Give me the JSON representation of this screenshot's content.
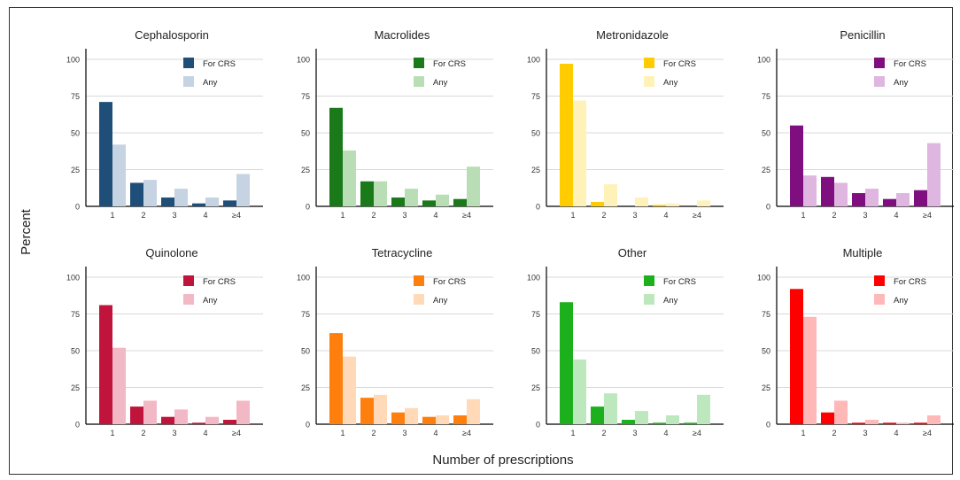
{
  "chart_data": {
    "type": "bar",
    "ylabel": "Percent",
    "xlabel": "Number of prescriptions",
    "categories": [
      "1",
      "2",
      "3",
      "4",
      "≥4"
    ],
    "ylim": [
      0,
      100
    ],
    "yticks": [
      "0",
      "25",
      "50",
      "75",
      "100"
    ],
    "grid": "horizontal",
    "legend_position": "top-right",
    "legend_labels": [
      "For CRS",
      "Any"
    ],
    "panels": [
      {
        "title": "Cephalosporin",
        "colors": [
          "#1f4e79",
          "#c5d3e2"
        ],
        "series": [
          {
            "name": "For CRS",
            "values": [
              71,
              16,
              6,
              2,
              4
            ]
          },
          {
            "name": "Any",
            "values": [
              42,
              18,
              12,
              6,
              22
            ]
          }
        ]
      },
      {
        "title": "Macrolides",
        "colors": [
          "#1a7a1a",
          "#b9ddb4"
        ],
        "series": [
          {
            "name": "For CRS",
            "values": [
              67,
              17,
              6,
              4,
              5
            ]
          },
          {
            "name": "Any",
            "values": [
              38,
              17,
              12,
              8,
              27
            ]
          }
        ]
      },
      {
        "title": "Metronidazole",
        "colors": [
          "#ffcc00",
          "#fff2b8"
        ],
        "series": [
          {
            "name": "For CRS",
            "values": [
              97,
              3,
              0,
              1,
              0
            ]
          },
          {
            "name": "Any",
            "values": [
              72,
              15,
              6,
              2,
              4
            ]
          }
        ]
      },
      {
        "title": "Penicillin",
        "colors": [
          "#7f0f7f",
          "#dfb6df"
        ],
        "series": [
          {
            "name": "For CRS",
            "values": [
              55,
              20,
              9,
              5,
              11
            ]
          },
          {
            "name": "Any",
            "values": [
              21,
              16,
              12,
              9,
              43
            ]
          }
        ]
      },
      {
        "title": "Quinolone",
        "colors": [
          "#c0143c",
          "#f2b8c6"
        ],
        "series": [
          {
            "name": "For CRS",
            "values": [
              81,
              12,
              5,
              1,
              3
            ]
          },
          {
            "name": "Any",
            "values": [
              52,
              16,
              10,
              5,
              16
            ]
          }
        ]
      },
      {
        "title": "Tetracycline",
        "colors": [
          "#ff7f0e",
          "#ffd9b8"
        ],
        "series": [
          {
            "name": "For CRS",
            "values": [
              62,
              18,
              8,
              5,
              6
            ]
          },
          {
            "name": "Any",
            "values": [
              46,
              20,
              11,
              6,
              17
            ]
          }
        ]
      },
      {
        "title": "Other",
        "colors": [
          "#1db01d",
          "#bde8bd"
        ],
        "series": [
          {
            "name": "For CRS",
            "values": [
              83,
              12,
              3,
              1,
              1
            ]
          },
          {
            "name": "Any",
            "values": [
              44,
              21,
              9,
              6,
              20
            ]
          }
        ]
      },
      {
        "title": "Multiple",
        "colors": [
          "#ff0000",
          "#ffb8b8"
        ],
        "series": [
          {
            "name": "For CRS",
            "values": [
              92,
              8,
              1,
              1,
              1
            ]
          },
          {
            "name": "Any",
            "values": [
              73,
              16,
              3,
              1,
              6
            ]
          }
        ]
      }
    ]
  }
}
